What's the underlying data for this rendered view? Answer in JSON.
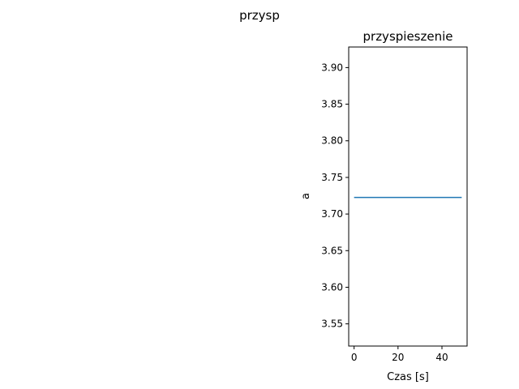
{
  "figure": {
    "suptitle": "przysp"
  },
  "chart_data": {
    "type": "line",
    "title": "przyspieszenie",
    "xlabel": "Czas [s]",
    "ylabel": "a",
    "xlim": [
      -2.45,
      51.45
    ],
    "ylim": [
      3.5197,
      3.9281
    ],
    "x_ticks": [
      0,
      20,
      40
    ],
    "x_tick_labels": [
      "0",
      "20",
      "40"
    ],
    "y_ticks": [
      3.55,
      3.6,
      3.65,
      3.7,
      3.75,
      3.8,
      3.85,
      3.9
    ],
    "y_tick_labels": [
      "3.55",
      "3.60",
      "3.65",
      "3.70",
      "3.75",
      "3.80",
      "3.85",
      "3.90"
    ],
    "grid": false,
    "series": [
      {
        "color": "#1f77b4",
        "x": [
          0,
          49
        ],
        "y": [
          3.7227,
          3.7227
        ]
      }
    ]
  }
}
